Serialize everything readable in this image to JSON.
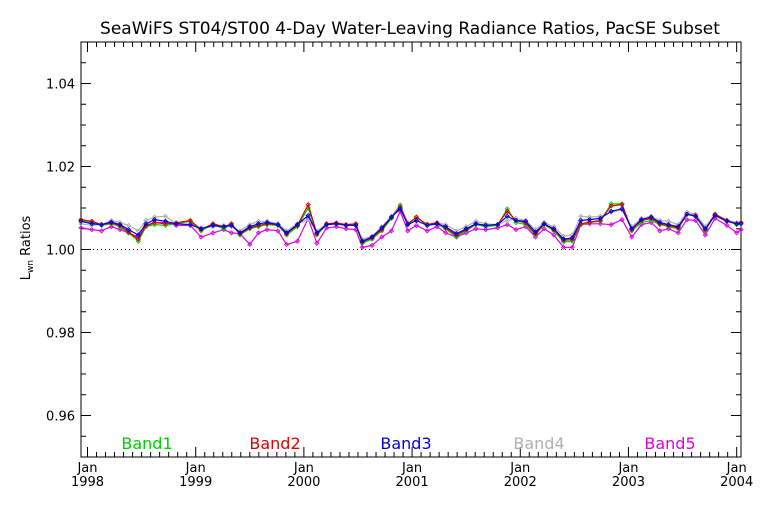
{
  "chart_data": {
    "type": "line",
    "title": "SeaWiFS ST04/ST00 4-Day Water-Leaving Radiance Ratios, PacSE Subset",
    "ylabel_main": "L",
    "ylabel_sub": "wn",
    "ylabel_rest": " Ratios",
    "ylim": [
      0.95,
      1.05
    ],
    "yticks": [
      0.96,
      0.98,
      1.0,
      1.02,
      1.04
    ],
    "ytick_labels": [
      "0.96",
      "0.98",
      "1.00",
      "1.02",
      "1.04"
    ],
    "xlim": [
      1997.94,
      2004.04
    ],
    "xticks": [
      {
        "pos": 1998.0,
        "month": "Jan",
        "year": "1998"
      },
      {
        "pos": 1999.0,
        "month": "Jan",
        "year": "1999"
      },
      {
        "pos": 2000.0,
        "month": "Jan",
        "year": "2000"
      },
      {
        "pos": 2001.0,
        "month": "Jan",
        "year": "2001"
      },
      {
        "pos": 2002.0,
        "month": "Jan",
        "year": "2002"
      },
      {
        "pos": 2003.0,
        "month": "Jan",
        "year": "2003"
      },
      {
        "pos": 2004.0,
        "month": "Jan",
        "year": "2004"
      }
    ],
    "reference_line": 1.0,
    "legend_placement": "bottom, inside plot",
    "x": [
      1997.94,
      1998.04,
      1998.13,
      1998.22,
      1998.3,
      1998.38,
      1998.47,
      1998.54,
      1998.62,
      1998.72,
      1998.82,
      1998.95,
      1999.05,
      1999.16,
      1999.26,
      1999.33,
      1999.41,
      1999.5,
      1999.58,
      1999.66,
      1999.76,
      1999.84,
      1999.94,
      2000.04,
      2000.12,
      2000.21,
      2000.3,
      2000.39,
      2000.48,
      2000.54,
      2000.63,
      2000.72,
      2000.81,
      2000.89,
      2000.96,
      2001.04,
      2001.14,
      2001.23,
      2001.31,
      2001.41,
      2001.5,
      2001.59,
      2001.68,
      2001.79,
      2001.88,
      2001.96,
      2002.05,
      2002.14,
      2002.22,
      2002.31,
      2002.4,
      2002.48,
      2002.56,
      2002.64,
      2002.74,
      2002.84,
      2002.94,
      2003.03,
      2003.12,
      2003.21,
      2003.29,
      2003.37,
      2003.46,
      2003.54,
      2003.62,
      2003.71,
      2003.8,
      2003.91,
      2004.0,
      2004.04
    ],
    "series": [
      {
        "name": "Band1",
        "color": "#00d000",
        "values": [
          1.007,
          1.0065,
          1.0058,
          1.0062,
          1.0055,
          1.004,
          1.002,
          1.0055,
          1.006,
          1.0058,
          1.0062,
          1.0068,
          1.0045,
          1.006,
          1.005,
          1.0062,
          1.0035,
          1.005,
          1.0055,
          1.006,
          1.0058,
          1.0035,
          1.0055,
          1.01,
          1.0035,
          1.006,
          1.0062,
          1.0058,
          1.006,
          1.0015,
          1.0025,
          1.0045,
          1.0075,
          1.0105,
          1.006,
          1.0078,
          1.0058,
          1.0062,
          1.005,
          1.003,
          1.0045,
          1.006,
          1.0055,
          1.0058,
          1.0098,
          1.0065,
          1.006,
          1.0035,
          1.006,
          1.0045,
          1.0018,
          1.002,
          1.006,
          1.0065,
          1.0068,
          1.011,
          1.011,
          1.0045,
          1.0065,
          1.007,
          1.006,
          1.0055,
          1.005,
          1.0085,
          1.008,
          1.0045,
          1.0085,
          1.007,
          1.006,
          1.0065
        ]
      },
      {
        "name": "Band2",
        "color": "#e00000",
        "values": [
          1.0072,
          1.0068,
          1.006,
          1.0064,
          1.0058,
          1.0042,
          1.0025,
          1.0058,
          1.0065,
          1.0062,
          1.0064,
          1.007,
          1.0048,
          1.0062,
          1.0055,
          1.0062,
          1.0038,
          1.0052,
          1.0058,
          1.0062,
          1.006,
          1.0038,
          1.0058,
          1.0108,
          1.0038,
          1.0062,
          1.0064,
          1.006,
          1.0062,
          1.0018,
          1.0028,
          1.0048,
          1.0078,
          1.0102,
          1.0062,
          1.0078,
          1.006,
          1.0064,
          1.0052,
          1.0034,
          1.0048,
          1.0062,
          1.0058,
          1.006,
          1.0092,
          1.007,
          1.0064,
          1.0038,
          1.0062,
          1.0048,
          1.0022,
          1.0024,
          1.0062,
          1.0066,
          1.007,
          1.0105,
          1.0108,
          1.0048,
          1.007,
          1.0075,
          1.0062,
          1.0058,
          1.0052,
          1.0085,
          1.0082,
          1.0048,
          1.0085,
          1.007,
          1.0062,
          1.0065
        ]
      },
      {
        "name": "Band3",
        "color": "#0000e0",
        "values": [
          1.0068,
          1.0062,
          1.006,
          1.0066,
          1.006,
          1.0048,
          1.0035,
          1.0062,
          1.0072,
          1.0068,
          1.0062,
          1.006,
          1.005,
          1.0058,
          1.0055,
          1.0058,
          1.004,
          1.0055,
          1.0062,
          1.0065,
          1.006,
          1.004,
          1.006,
          1.0082,
          1.004,
          1.006,
          1.0062,
          1.0058,
          1.0058,
          1.002,
          1.003,
          1.0052,
          1.0078,
          1.0098,
          1.006,
          1.007,
          1.0058,
          1.0062,
          1.0055,
          1.0038,
          1.005,
          1.0062,
          1.0058,
          1.006,
          1.008,
          1.007,
          1.0068,
          1.0042,
          1.0062,
          1.005,
          1.0025,
          1.0028,
          1.007,
          1.0072,
          1.0075,
          1.0092,
          1.0098,
          1.005,
          1.0072,
          1.0078,
          1.0065,
          1.006,
          1.0055,
          1.0085,
          1.008,
          1.005,
          1.0082,
          1.0068,
          1.0062,
          1.0062
        ]
      },
      {
        "name": "Band4",
        "color": "#b0b0b0",
        "values": [
          1.0062,
          1.0058,
          1.006,
          1.007,
          1.0065,
          1.0058,
          1.0045,
          1.007,
          1.0078,
          1.008,
          1.0062,
          1.006,
          1.0052,
          1.0055,
          1.0058,
          1.0055,
          1.0045,
          1.006,
          1.0068,
          1.0068,
          1.0062,
          1.0045,
          1.0062,
          1.0072,
          1.0045,
          1.0062,
          1.0062,
          1.006,
          1.0058,
          1.0025,
          1.0032,
          1.0055,
          1.008,
          1.0108,
          1.0065,
          1.0068,
          1.0062,
          1.0065,
          1.006,
          1.0045,
          1.0055,
          1.0068,
          1.0062,
          1.006,
          1.007,
          1.0075,
          1.007,
          1.0048,
          1.0065,
          1.0055,
          1.0032,
          1.0035,
          1.008,
          1.0078,
          1.008,
          1.009,
          1.0095,
          1.0055,
          1.0075,
          1.008,
          1.007,
          1.0068,
          1.006,
          1.009,
          1.0085,
          1.0055,
          1.0085,
          1.007,
          1.0065,
          1.0062
        ]
      },
      {
        "name": "Band5",
        "color": "#e000e0",
        "values": [
          1.0052,
          1.0048,
          1.0045,
          1.0055,
          1.0048,
          1.004,
          1.003,
          1.0055,
          1.0065,
          1.0065,
          1.0058,
          1.0058,
          1.003,
          1.004,
          1.0048,
          1.004,
          1.0038,
          1.0012,
          1.004,
          1.0048,
          1.0045,
          1.0012,
          1.002,
          1.0075,
          1.0015,
          1.0052,
          1.0055,
          1.005,
          1.0048,
          1.0005,
          1.001,
          1.003,
          1.0045,
          1.0092,
          1.0045,
          1.0058,
          1.0045,
          1.0055,
          1.004,
          1.003,
          1.004,
          1.005,
          1.0048,
          1.0052,
          1.006,
          1.0048,
          1.0055,
          1.003,
          1.005,
          1.0035,
          1.0005,
          1.0005,
          1.006,
          1.0062,
          1.0062,
          1.006,
          1.0072,
          1.003,
          1.006,
          1.0065,
          1.0045,
          1.005,
          1.004,
          1.0072,
          1.007,
          1.0035,
          1.0075,
          1.0058,
          1.004,
          1.0048
        ]
      }
    ]
  }
}
